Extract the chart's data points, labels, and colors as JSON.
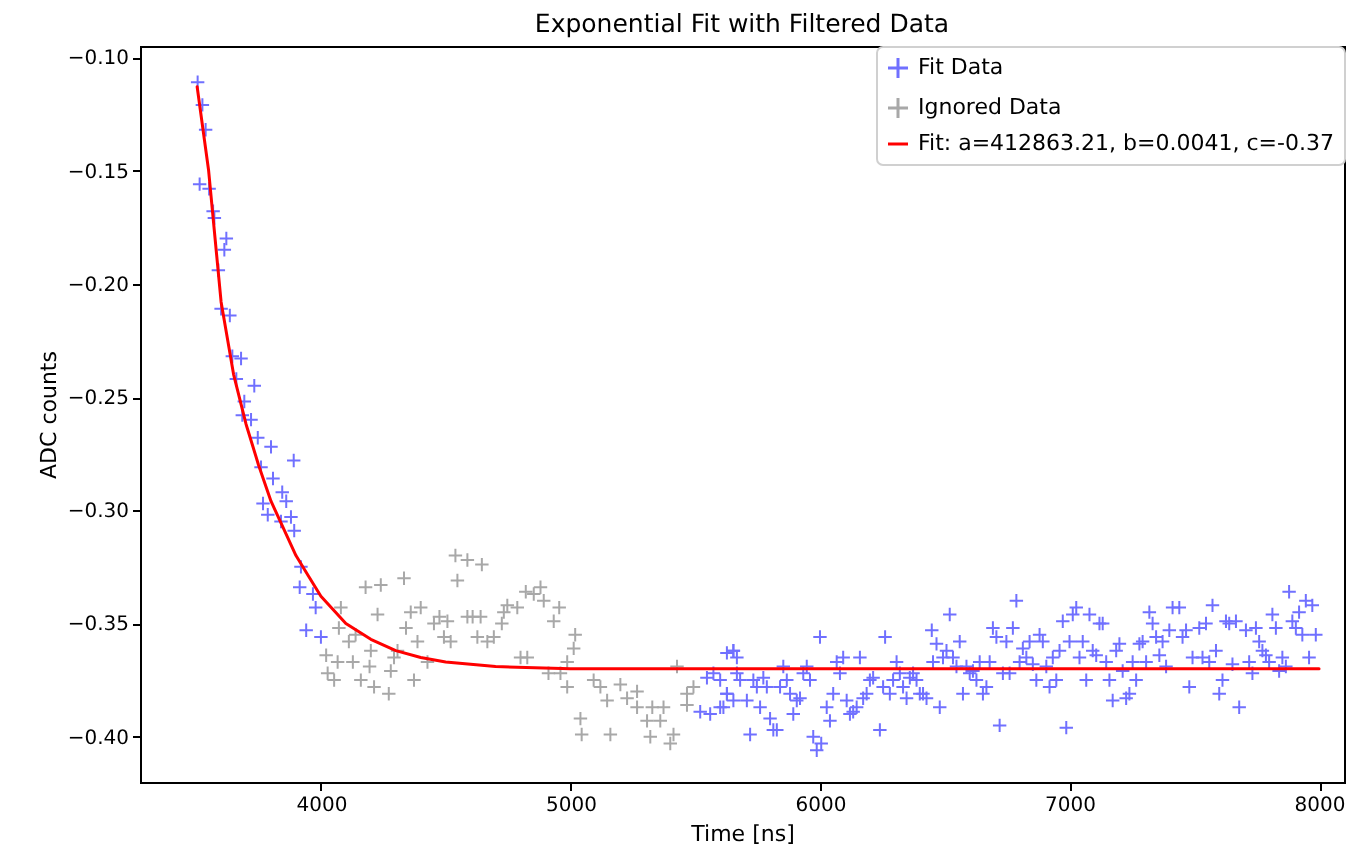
{
  "chart_data": {
    "type": "scatter",
    "title": "Exponential Fit with Filtered Data",
    "xlabel": "Time [ns]",
    "ylabel": "ADC counts",
    "xlim": [
      3275,
      8100
    ],
    "ylim": [
      -0.42,
      -0.095
    ],
    "xticks": [
      4000,
      5000,
      6000,
      7000,
      8000
    ],
    "yticks": [
      {
        "value": -0.4,
        "label": "−0.40"
      },
      {
        "value": -0.35,
        "label": "−0.35"
      },
      {
        "value": -0.3,
        "label": "−0.30"
      },
      {
        "value": -0.25,
        "label": "−0.25"
      },
      {
        "value": -0.2,
        "label": "−0.20"
      },
      {
        "value": -0.15,
        "label": "−0.15"
      },
      {
        "value": -0.1,
        "label": "−0.10"
      }
    ],
    "legend": "top right",
    "marker": "cross",
    "series": [
      {
        "name": "Fit Data",
        "color": "#7070ff",
        "x": [
          3506,
          3525,
          3538,
          3514,
          3552,
          3568,
          3573,
          3621,
          3613,
          3589,
          3600,
          3635,
          3645,
          3680,
          3661,
          3733,
          3693,
          3685,
          3720,
          3747,
          3800,
          3891,
          3760,
          3808,
          3845,
          3861,
          3768,
          3787,
          3880,
          3840,
          3893,
          3920,
          3915,
          3968,
          3979,
          3941,
          4000,
          5547,
          5573,
          5627,
          5653,
          5520,
          5560,
          5600,
          5627,
          5653,
          5667,
          5600,
          5627,
          5613,
          5653,
          5667,
          5680,
          5707,
          5720,
          5733,
          5747,
          5760,
          5773,
          5787,
          5800,
          5813,
          5827,
          5840,
          5853,
          5867,
          5880,
          5893,
          5907,
          5920,
          5933,
          5947,
          5960,
          5973,
          5987,
          6000,
          6005,
          6027,
          6040,
          6053,
          6067,
          6080,
          6093,
          6107,
          6120,
          6133,
          6147,
          6160,
          6173,
          6187,
          6200,
          6213,
          6240,
          6253,
          6261,
          6280,
          6293,
          6307,
          6320,
          6333,
          6347,
          6360,
          6373,
          6387,
          6400,
          6413,
          6427,
          6448,
          6453,
          6467,
          6480,
          6493,
          6507,
          6520,
          6533,
          6547,
          6560,
          6573,
          6587,
          6600,
          6613,
          6627,
          6640,
          6653,
          6667,
          6680,
          6693,
          6707,
          6720,
          6733,
          6747,
          6760,
          6773,
          6787,
          6800,
          6813,
          6827,
          6840,
          6853,
          6867,
          6880,
          6893,
          6907,
          6920,
          6933,
          6947,
          6960,
          6973,
          6987,
          7000,
          7013,
          7027,
          7040,
          7053,
          7067,
          7080,
          7093,
          7107,
          7120,
          7133,
          7147,
          7160,
          7173,
          7187,
          7200,
          7213,
          7227,
          7240,
          7253,
          7267,
          7280,
          7293,
          7307,
          7320,
          7333,
          7347,
          7360,
          7373,
          7387,
          7400,
          7413,
          7440,
          7453,
          7467,
          7480,
          7493,
          7520,
          7533,
          7547,
          7560,
          7573,
          7587,
          7600,
          7613,
          7627,
          7640,
          7653,
          7667,
          7680,
          7707,
          7720,
          7733,
          7747,
          7760,
          7773,
          7787,
          7800,
          7813,
          7827,
          7840,
          7853,
          7867,
          7880,
          7893,
          7907,
          7920,
          7933,
          7947,
          7960,
          7973,
          7987
        ],
        "values": [
          -0.111,
          -0.121,
          -0.132,
          -0.156,
          -0.158,
          -0.168,
          -0.171,
          -0.18,
          -0.185,
          -0.194,
          -0.211,
          -0.214,
          -0.232,
          -0.233,
          -0.242,
          -0.245,
          -0.252,
          -0.258,
          -0.26,
          -0.268,
          -0.272,
          -0.278,
          -0.281,
          -0.286,
          -0.292,
          -0.296,
          -0.297,
          -0.302,
          -0.303,
          -0.305,
          -0.309,
          -0.325,
          -0.334,
          -0.337,
          -0.343,
          -0.353,
          -0.356,
          -0.374,
          -0.372,
          -0.363,
          -0.362,
          -0.389,
          -0.39,
          -0.387,
          -0.381,
          -0.384,
          -0.372,
          -0.375,
          -0.381,
          -0.387,
          -0.362,
          -0.365,
          -0.375,
          -0.384,
          -0.399,
          -0.375,
          -0.378,
          -0.387,
          -0.374,
          -0.378,
          -0.392,
          -0.397,
          -0.397,
          -0.378,
          -0.369,
          -0.375,
          -0.381,
          -0.39,
          -0.384,
          -0.383,
          -0.372,
          -0.369,
          -0.375,
          -0.4,
          -0.406,
          -0.356,
          -0.403,
          -0.387,
          -0.393,
          -0.381,
          -0.367,
          -0.372,
          -0.365,
          -0.384,
          -0.39,
          -0.389,
          -0.387,
          -0.365,
          -0.383,
          -0.381,
          -0.375,
          -0.374,
          -0.397,
          -0.378,
          -0.356,
          -0.381,
          -0.375,
          -0.367,
          -0.372,
          -0.378,
          -0.383,
          -0.374,
          -0.372,
          -0.375,
          -0.381,
          -0.381,
          -0.383,
          -0.353,
          -0.367,
          -0.359,
          -0.387,
          -0.365,
          -0.362,
          -0.346,
          -0.365,
          -0.369,
          -0.358,
          -0.381,
          -0.369,
          -0.372,
          -0.371,
          -0.375,
          -0.367,
          -0.381,
          -0.378,
          -0.367,
          -0.352,
          -0.356,
          -0.395,
          -0.372,
          -0.358,
          -0.372,
          -0.352,
          -0.34,
          -0.367,
          -0.361,
          -0.365,
          -0.358,
          -0.368,
          -0.375,
          -0.355,
          -0.358,
          -0.369,
          -0.378,
          -0.365,
          -0.375,
          -0.362,
          -0.349,
          -0.396,
          -0.358,
          -0.346,
          -0.343,
          -0.365,
          -0.358,
          -0.375,
          -0.346,
          -0.362,
          -0.364,
          -0.35,
          -0.35,
          -0.367,
          -0.375,
          -0.384,
          -0.362,
          -0.359,
          -0.371,
          -0.383,
          -0.381,
          -0.367,
          -0.375,
          -0.359,
          -0.358,
          -0.367,
          -0.345,
          -0.35,
          -0.356,
          -0.364,
          -0.358,
          -0.369,
          -0.353,
          -0.343,
          -0.343,
          -0.356,
          -0.353,
          -0.378,
          -0.365,
          -0.352,
          -0.365,
          -0.35,
          -0.367,
          -0.342,
          -0.362,
          -0.381,
          -0.375,
          -0.349,
          -0.35,
          -0.368,
          -0.349,
          -0.387,
          -0.353,
          -0.367,
          -0.372,
          -0.352,
          -0.358,
          -0.362,
          -0.364,
          -0.367,
          -0.346,
          -0.352,
          -0.371,
          -0.365,
          -0.369,
          -0.336,
          -0.349,
          -0.352,
          -0.345,
          -0.355,
          -0.34,
          -0.365,
          -0.342,
          -0.355
        ]
      },
      {
        "name": "Ignored Data",
        "color": "#a8a8a8",
        "x": [
          4080,
          4072,
          4021,
          4067,
          4112,
          4139,
          4128,
          4027,
          4053,
          4160,
          4213,
          4195,
          4179,
          4240,
          4333,
          4227,
          4200,
          4280,
          4272,
          4293,
          4307,
          4373,
          4341,
          4360,
          4400,
          4387,
          4427,
          4453,
          4475,
          4507,
          4520,
          4493,
          4547,
          4539,
          4587,
          4645,
          4587,
          4608,
          4640,
          4627,
          4667,
          4693,
          4725,
          4733,
          4747,
          4787,
          4821,
          4853,
          4880,
          4893,
          4933,
          4955,
          4800,
          4827,
          4912,
          4960,
          4987,
          5013,
          5019,
          4987,
          5040,
          5045,
          5093,
          5120,
          5147,
          5160,
          5200,
          5227,
          5267,
          5267,
          5307,
          5320,
          5328,
          5373,
          5360,
          5413,
          5400,
          5427,
          5467,
          5493,
          5467
        ],
        "values": [
          -0.343,
          -0.352,
          -0.364,
          -0.367,
          -0.358,
          -0.355,
          -0.367,
          -0.372,
          -0.375,
          -0.375,
          -0.378,
          -0.369,
          -0.334,
          -0.333,
          -0.33,
          -0.346,
          -0.362,
          -0.371,
          -0.381,
          -0.365,
          -0.362,
          -0.375,
          -0.352,
          -0.345,
          -0.343,
          -0.358,
          -0.367,
          -0.35,
          -0.347,
          -0.349,
          -0.358,
          -0.356,
          -0.331,
          -0.32,
          -0.322,
          -0.324,
          -0.347,
          -0.347,
          -0.347,
          -0.356,
          -0.358,
          -0.356,
          -0.35,
          -0.345,
          -0.342,
          -0.343,
          -0.336,
          -0.337,
          -0.334,
          -0.34,
          -0.349,
          -0.343,
          -0.365,
          -0.365,
          -0.372,
          -0.372,
          -0.367,
          -0.361,
          -0.355,
          -0.378,
          -0.392,
          -0.399,
          -0.375,
          -0.378,
          -0.384,
          -0.399,
          -0.377,
          -0.383,
          -0.38,
          -0.387,
          -0.393,
          -0.4,
          -0.387,
          -0.387,
          -0.393,
          -0.399,
          -0.403,
          -0.369,
          -0.381,
          -0.378,
          -0.386
        ]
      },
      {
        "name": "Fit: a=412863.21, b=0.0041, c=-0.37",
        "type": "line",
        "marker": "none",
        "color": "#ff0000",
        "x": [
          3504,
          3550,
          3600,
          3650,
          3700,
          3750,
          3800,
          3850,
          3900,
          3950,
          4000,
          4100,
          4200,
          4300,
          4400,
          4500,
          4700,
          5000,
          6000,
          7000,
          8000
        ],
        "values": [
          -0.113,
          -0.15,
          -0.208,
          -0.24,
          -0.262,
          -0.28,
          -0.296,
          -0.308,
          -0.32,
          -0.329,
          -0.338,
          -0.35,
          -0.357,
          -0.362,
          -0.365,
          -0.367,
          -0.369,
          -0.37,
          -0.37,
          -0.37,
          -0.37
        ]
      }
    ]
  }
}
